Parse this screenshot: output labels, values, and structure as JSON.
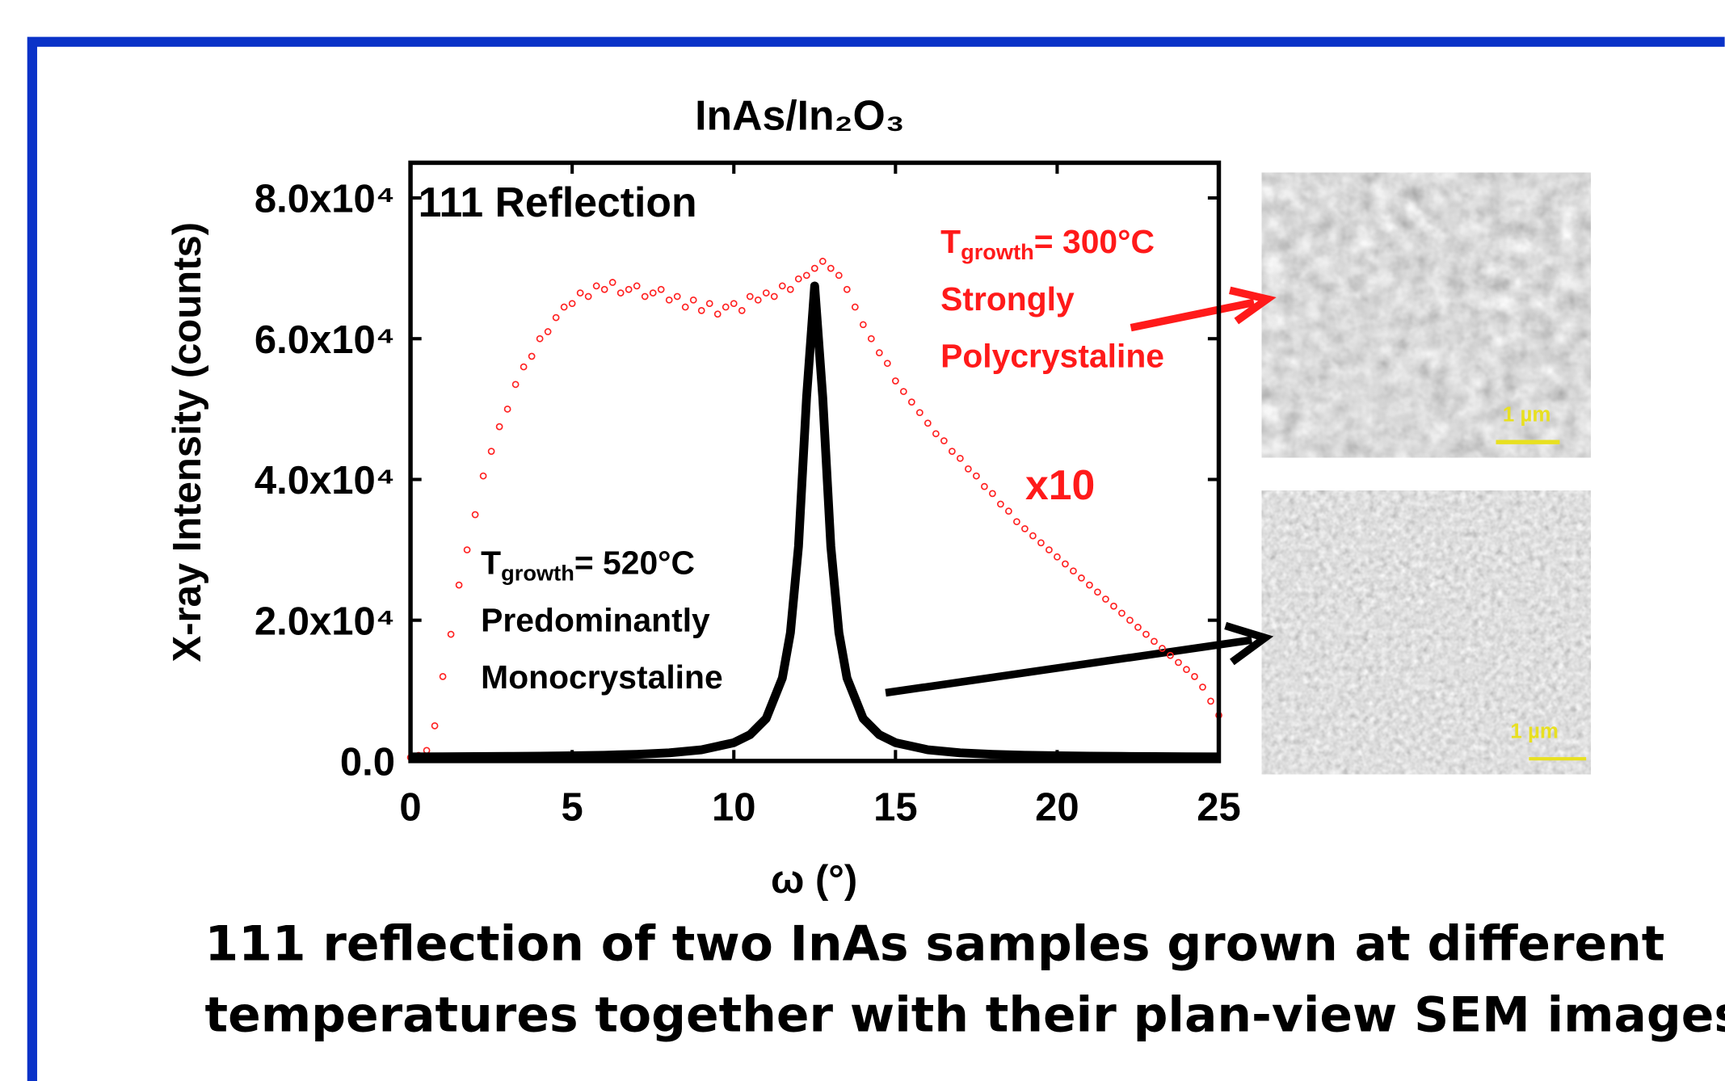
{
  "chart_data": {
    "type": "scatter",
    "title": "InAs/In₂O₃",
    "x_label": "ω (°)",
    "y_label": "X-ray Intensity (counts)",
    "xlim": [
      0,
      25
    ],
    "ylim": [
      0,
      85000
    ],
    "xticks": [
      0,
      5,
      10,
      15,
      20,
      25
    ],
    "yticks": [
      {
        "value": 0,
        "label": "0.0"
      },
      {
        "value": 20000,
        "label": "2.0x10⁴"
      },
      {
        "value": 40000,
        "label": "4.0x10⁴"
      },
      {
        "value": 60000,
        "label": "6.0x10⁴"
      },
      {
        "value": 80000,
        "label": "8.0x10⁴"
      }
    ],
    "series": [
      {
        "mode": "markers",
        "color": "#ff2020",
        "x": [
          0,
          0.25,
          0.5,
          0.75,
          1,
          1.25,
          1.5,
          1.75,
          2,
          2.25,
          2.5,
          2.75,
          3,
          3.25,
          3.5,
          3.75,
          4,
          4.25,
          4.5,
          4.75,
          5,
          5.25,
          5.5,
          5.75,
          6,
          6.25,
          6.5,
          6.75,
          7,
          7.25,
          7.5,
          7.75,
          8,
          8.25,
          8.5,
          8.75,
          9,
          9.25,
          9.5,
          9.75,
          10,
          10.25,
          10.5,
          10.75,
          11,
          11.25,
          11.5,
          11.75,
          12,
          12.25,
          12.5,
          12.75,
          13,
          13.25,
          13.5,
          13.75,
          14,
          14.25,
          14.5,
          14.75,
          15,
          15.25,
          15.5,
          15.75,
          16,
          16.25,
          16.5,
          16.75,
          17,
          17.25,
          17.5,
          17.75,
          18,
          18.25,
          18.5,
          18.75,
          19,
          19.25,
          19.5,
          19.75,
          20,
          20.25,
          20.5,
          20.75,
          21,
          21.25,
          21.5,
          21.75,
          22,
          22.25,
          22.5,
          22.75,
          23,
          23.25,
          23.5,
          23.75,
          24,
          24.25,
          24.5,
          24.75,
          25
        ],
        "values": [
          500,
          800,
          1500,
          5000,
          12000,
          18000,
          25000,
          30000,
          35000,
          40500,
          44000,
          47500,
          50000,
          53500,
          56000,
          57500,
          60000,
          61000,
          63000,
          64500,
          65000,
          66500,
          66000,
          67500,
          67000,
          68000,
          66500,
          67000,
          67500,
          66000,
          66500,
          67000,
          65500,
          66000,
          64500,
          65500,
          64000,
          65000,
          63500,
          64500,
          65000,
          64000,
          66000,
          65500,
          66500,
          66000,
          67500,
          67000,
          68500,
          69000,
          70000,
          71000,
          70000,
          69000,
          67000,
          64500,
          62000,
          60000,
          58000,
          56500,
          54000,
          52500,
          51000,
          49500,
          48000,
          46500,
          45500,
          44000,
          43000,
          41500,
          40500,
          39000,
          38000,
          36500,
          35500,
          34000,
          33000,
          32000,
          31000,
          30000,
          29000,
          28000,
          27000,
          26000,
          25000,
          24000,
          23000,
          22000,
          21000,
          20000,
          19000,
          18000,
          17000,
          16000,
          15000,
          14000,
          13000,
          12000,
          10500,
          8500,
          6500
        ]
      },
      {
        "mode": "line",
        "color": "#000000",
        "x": [
          0,
          1,
          2,
          3,
          4,
          5,
          6,
          7,
          8,
          9,
          10,
          10.5,
          11,
          11.5,
          11.75,
          12,
          12.25,
          12.5,
          12.75,
          13,
          13.25,
          13.5,
          14,
          14.5,
          15,
          16,
          17,
          18,
          19,
          20,
          21,
          22,
          23,
          24,
          25
        ],
        "values": [
          590,
          600,
          620,
          650,
          690,
          740,
          820,
          950,
          1160,
          1590,
          2600,
          3730,
          6030,
          11780,
          18220,
          30500,
          51680,
          67500,
          51680,
          30500,
          18220,
          11780,
          6030,
          3730,
          2600,
          1590,
          1160,
          950,
          820,
          740,
          690,
          650,
          620,
          600,
          590
        ]
      }
    ],
    "annotations": {
      "reflection": "111 Reflection",
      "scale_factor": "x10",
      "high_temp": {
        "parts": [
          "T",
          "growth",
          "= 300°C"
        ],
        "lines": [
          "Strongly",
          "Polycrystaline"
        ]
      },
      "low_temp": {
        "parts": [
          "T",
          "growth",
          "= 520°C"
        ],
        "lines": [
          "Predominantly",
          "Monocrystaline"
        ]
      }
    },
    "images": [
      {
        "scale_bar": "1 µm"
      },
      {
        "scale_bar": "1 µm"
      }
    ],
    "caption": [
      "111 reflection of two InAs samples grown at different",
      "temperatures together with their plan-view SEM images."
    ]
  }
}
